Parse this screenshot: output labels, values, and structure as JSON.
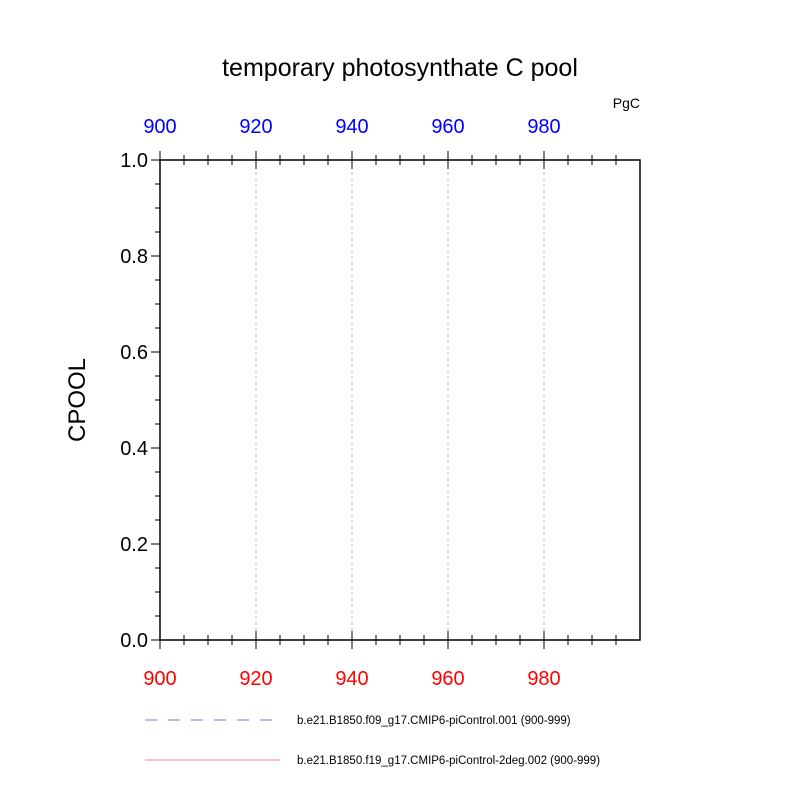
{
  "chart_data": {
    "type": "line",
    "title": "temporary photosynthate C pool",
    "units": "PgC",
    "ylabel": "CPOOL",
    "xlabel": "",
    "xlim": [
      900,
      999
    ],
    "ylim": [
      0.0,
      1.0
    ],
    "x_ticks": [
      900,
      920,
      940,
      960,
      980
    ],
    "y_ticks": [
      "0.0",
      "0.2",
      "0.4",
      "0.6",
      "0.8",
      "1.0"
    ],
    "grid": "vertical dotted lines at major x ticks",
    "top_axis_color": "#0000ff",
    "bottom_axis_color": "#ff0000",
    "series": [
      {
        "name": "b.e21.B1850.f09_g17.CMIP6-piControl.001 (900-999)",
        "color": "#7070ff",
        "dash": "dashed",
        "axis": "top",
        "x": [],
        "y": []
      },
      {
        "name": "b.e21.B1850.f19_g17.CMIP6-piControl-2deg.002 (900-999)",
        "color": "#ff8080",
        "dash": "solid",
        "axis": "bottom",
        "x": [],
        "y": []
      }
    ]
  }
}
